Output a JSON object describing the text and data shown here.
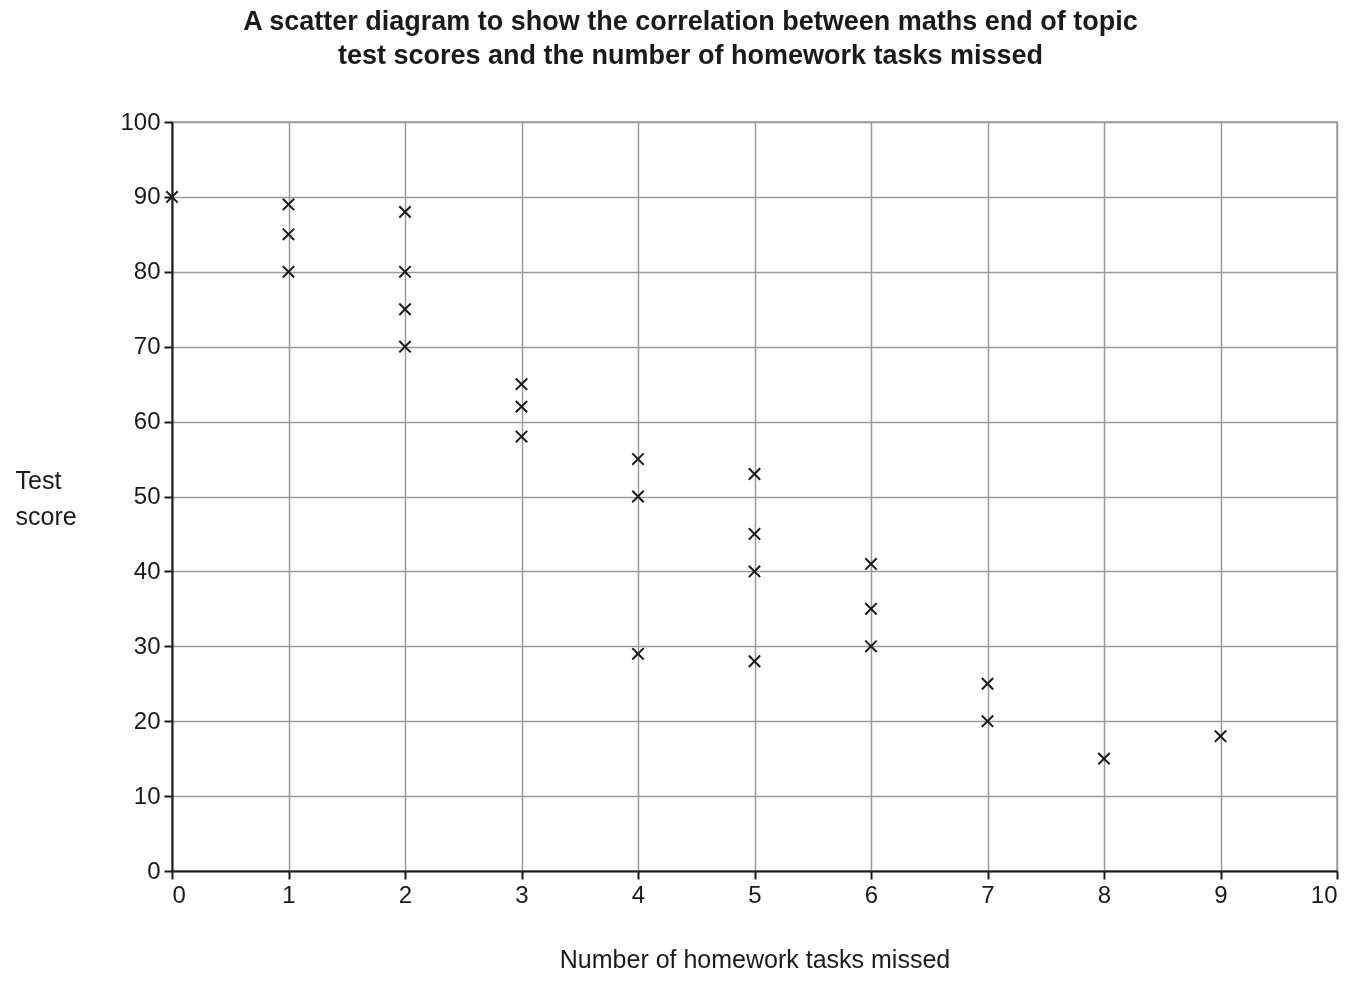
{
  "chart_data": {
    "type": "scatter",
    "title": "A scatter diagram to show the correlation between maths end of topic test scores and the number of homework tasks missed",
    "xlabel": "Number of homework tasks missed",
    "ylabel": "Test score",
    "x": [
      0,
      1,
      1,
      1,
      2,
      2,
      2,
      2,
      3,
      3,
      3,
      4,
      4,
      4,
      5,
      5,
      5,
      5,
      6,
      6,
      6,
      7,
      7,
      8,
      9
    ],
    "values": [
      90,
      89,
      85,
      80,
      88,
      80,
      75,
      70,
      65,
      62,
      58,
      55,
      50,
      29,
      53,
      45,
      40,
      28,
      41,
      35,
      30,
      25,
      20,
      15,
      18
    ],
    "color": "#1a1a1a",
    "marker": "cross",
    "grid": true,
    "xlim": [
      0,
      10
    ],
    "xticks": [
      0,
      1,
      2,
      3,
      4,
      5,
      6,
      7,
      8,
      9,
      10
    ],
    "ylim": [
      0,
      100
    ],
    "yticks": [
      0,
      10,
      20,
      30,
      40,
      50,
      60,
      70,
      80,
      90,
      100
    ]
  }
}
